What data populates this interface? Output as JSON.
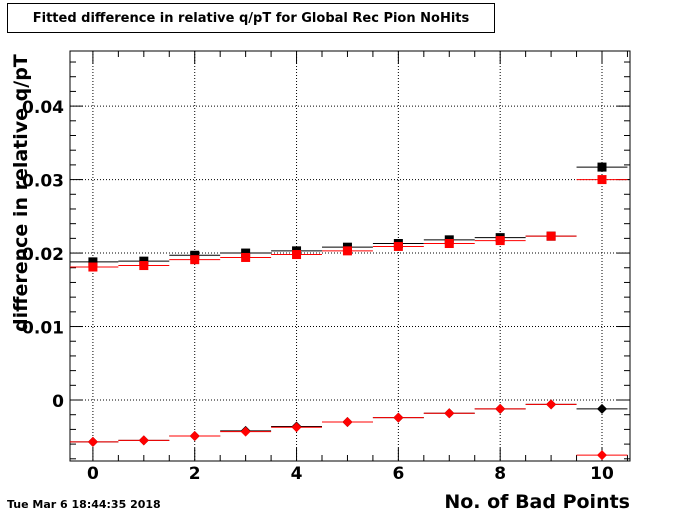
{
  "chart_data": {
    "type": "scatter",
    "title": "Fitted difference in relative q/pT for Global Rec Pion NoHits",
    "xlabel": "No. of Bad Points",
    "ylabel": "difference in relative q/pT",
    "xlim": [
      -0.45,
      10.55
    ],
    "ylim": [
      -0.0083,
      0.0475
    ],
    "grid": true,
    "x_ticks": [
      0,
      2,
      4,
      6,
      8,
      10
    ],
    "x_tick_labels": [
      "0",
      "2",
      "4",
      "6",
      "8",
      "10"
    ],
    "y_ticks": [
      0,
      0.01,
      0.02,
      0.03,
      0.04
    ],
    "y_tick_labels": [
      "0",
      "0.01",
      "0.02",
      "0.03",
      "0.04"
    ],
    "series": [
      {
        "color": "#000000",
        "marker": "square",
        "x": [
          0,
          1,
          2,
          3,
          4,
          5,
          6,
          7,
          8,
          9,
          10
        ],
        "y": [
          0.0188,
          0.0189,
          0.0197,
          0.02,
          0.0203,
          0.0208,
          0.0213,
          0.0218,
          0.0221,
          0.0223,
          0.0317
        ]
      },
      {
        "color": "#ff0000",
        "marker": "square",
        "x": [
          0,
          1,
          2,
          3,
          4,
          5,
          6,
          7,
          8,
          9,
          10
        ],
        "y": [
          0.0181,
          0.0183,
          0.0191,
          0.0194,
          0.0198,
          0.0203,
          0.0209,
          0.0213,
          0.0217,
          0.0223,
          0.03
        ]
      },
      {
        "color": "#000000",
        "marker": "diamond",
        "x": [
          0,
          1,
          2,
          3,
          4,
          5,
          6,
          7,
          8,
          9,
          10
        ],
        "y": [
          -0.0057,
          -0.0055,
          -0.0049,
          -0.0042,
          -0.0036,
          -0.003,
          -0.0024,
          -0.0018,
          -0.0012,
          -0.0006,
          -0.0012
        ]
      },
      {
        "color": "#ff0000",
        "marker": "diamond",
        "x": [
          0,
          1,
          2,
          3,
          4,
          5,
          6,
          7,
          8,
          9,
          10
        ],
        "y": [
          -0.0057,
          -0.0055,
          -0.0049,
          -0.0043,
          -0.0037,
          -0.003,
          -0.0024,
          -0.0018,
          -0.0012,
          -0.0006,
          -0.0075
        ]
      }
    ]
  },
  "footer": {
    "timestamp": "Tue Mar  6 18:44:35 2018"
  }
}
